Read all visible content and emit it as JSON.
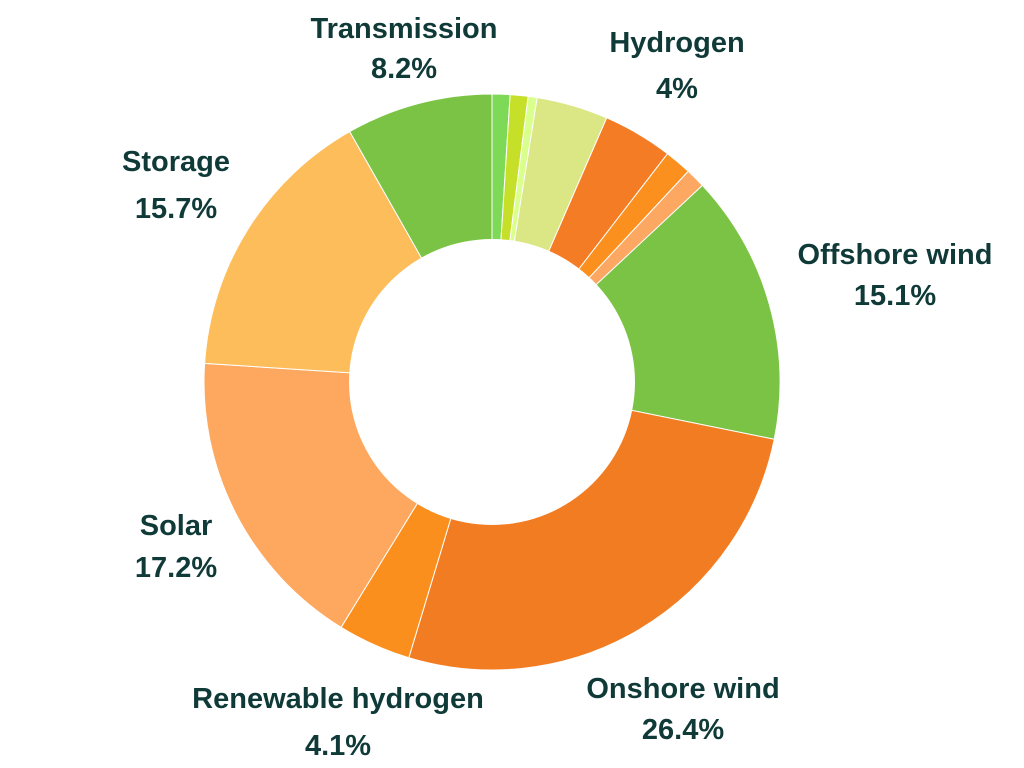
{
  "chart_data": {
    "type": "pie",
    "donut": true,
    "slices": [
      {
        "label": "",
        "value": 1.0,
        "color": "#7ed957",
        "show_label": false
      },
      {
        "label": "",
        "value": 1.0,
        "color": "#c6e02a",
        "show_label": false
      },
      {
        "label": "",
        "value": 0.5,
        "color": "#d9ff8c",
        "show_label": false
      },
      {
        "label": "Hydrogen",
        "value_text": "4%",
        "value": 4.0,
        "color": "#dbe784",
        "show_label": true
      },
      {
        "label": "",
        "value": 3.9,
        "color": "#f47c25",
        "show_label": false
      },
      {
        "label": "",
        "value": 1.5,
        "color": "#fb901e",
        "show_label": false
      },
      {
        "label": "",
        "value": 1.1,
        "color": "#fda862",
        "show_label": false
      },
      {
        "label": "Offshore wind",
        "value_text": "15.1%",
        "value": 15.1,
        "color": "#7bc344",
        "show_label": true
      },
      {
        "label": "Onshore wind",
        "value_text": "26.4%",
        "value": 26.4,
        "color": "#f27c22",
        "show_label": true
      },
      {
        "label": "Renewable hydrogen",
        "value_text": "4.1%",
        "value": 4.1,
        "color": "#fb8f1e",
        "show_label": true
      },
      {
        "label": "Solar",
        "value_text": "17.2%",
        "value": 17.2,
        "color": "#fda85e",
        "show_label": true
      },
      {
        "label": "Storage",
        "value_text": "15.7%",
        "value": 15.7,
        "color": "#fdbd5a",
        "show_label": true
      },
      {
        "label": "Transmission",
        "value_text": "8.2%",
        "value": 8.2,
        "color": "#7ac344",
        "show_label": true
      }
    ],
    "label_color": "#0f3a38",
    "legend": "none"
  }
}
